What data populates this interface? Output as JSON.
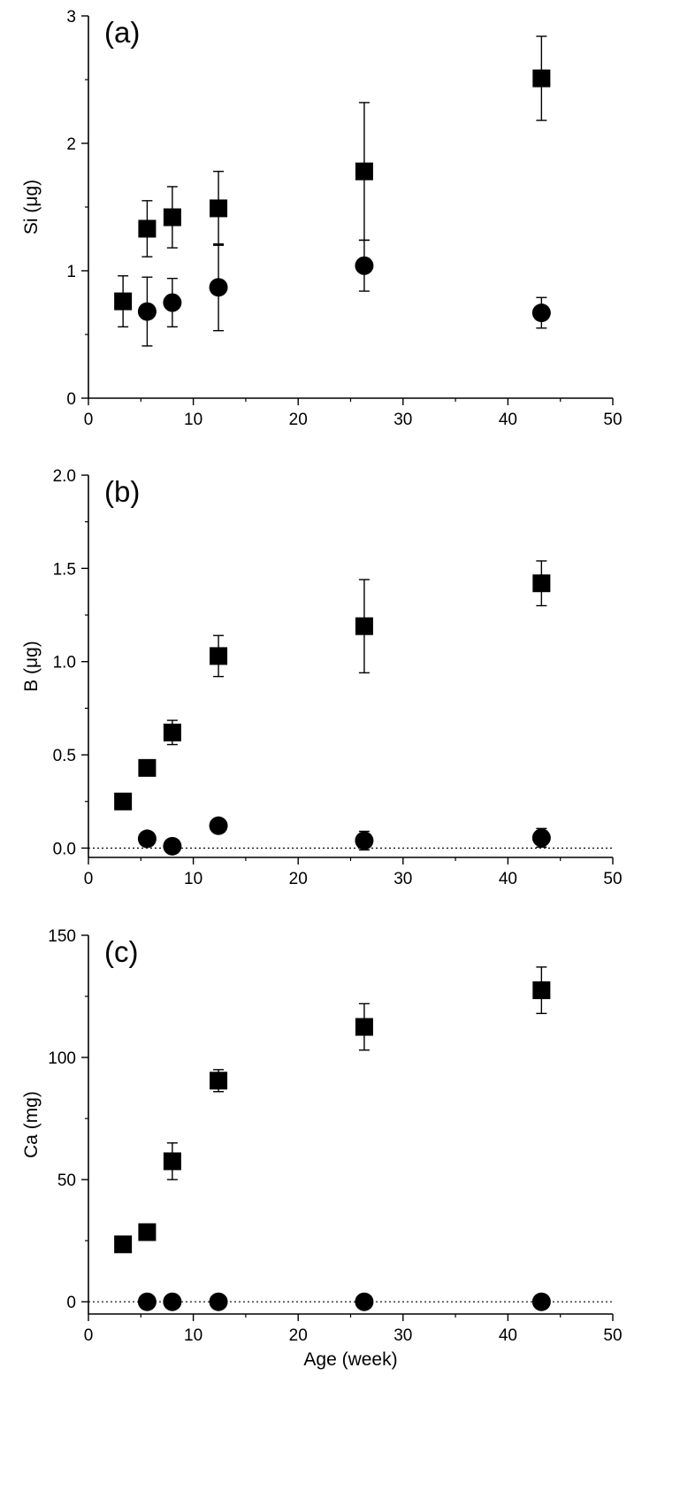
{
  "chart_data": [
    {
      "type": "scatter",
      "panel_label": "(a)",
      "xlabel": "",
      "ylabel": "Si (μg)",
      "xlim": [
        0,
        50
      ],
      "ylim": [
        0,
        3
      ],
      "x_ticks": [
        0,
        10,
        20,
        30,
        40,
        50
      ],
      "y_ticks": [
        0,
        1,
        2,
        3
      ],
      "x_tick_labels": [
        "0",
        "10",
        "20",
        "30",
        "40",
        "50"
      ],
      "y_tick_labels": [
        "0",
        "1",
        "2",
        "3"
      ],
      "zero_line": false,
      "series": [
        {
          "marker": "square",
          "points": [
            {
              "x": 3.3,
              "y": 0.76,
              "err": 0.2
            },
            {
              "x": 5.6,
              "y": 1.33,
              "err": 0.22
            },
            {
              "x": 8.0,
              "y": 1.42,
              "err": 0.24
            },
            {
              "x": 12.4,
              "y": 1.49,
              "err": 0.29
            },
            {
              "x": 26.3,
              "y": 1.78,
              "err": 0.54
            },
            {
              "x": 43.2,
              "y": 2.51,
              "err": 0.33
            }
          ]
        },
        {
          "marker": "circle",
          "points": [
            {
              "x": 5.6,
              "y": 0.68,
              "err": 0.27
            },
            {
              "x": 8.0,
              "y": 0.75,
              "err": 0.19
            },
            {
              "x": 12.4,
              "y": 0.87,
              "err": 0.34
            },
            {
              "x": 26.3,
              "y": 1.04,
              "err": 0.2
            },
            {
              "x": 43.2,
              "y": 0.67,
              "err": 0.12
            }
          ]
        }
      ]
    },
    {
      "type": "scatter",
      "panel_label": "(b)",
      "xlabel": "",
      "ylabel": "B (μg)",
      "xlim": [
        0,
        50
      ],
      "ylim": [
        -0.05,
        2.0
      ],
      "x_ticks": [
        0,
        10,
        20,
        30,
        40,
        50
      ],
      "y_ticks": [
        0,
        0.5,
        1,
        1.5,
        2
      ],
      "x_tick_labels": [
        "0",
        "10",
        "20",
        "30",
        "40",
        "50"
      ],
      "y_tick_labels": [
        "0.0",
        "0.5",
        "1.0",
        "1.5",
        "2.0"
      ],
      "zero_line": true,
      "series": [
        {
          "marker": "square",
          "points": [
            {
              "x": 3.3,
              "y": 0.25,
              "err": 0
            },
            {
              "x": 5.6,
              "y": 0.43,
              "err": 0
            },
            {
              "x": 8.0,
              "y": 0.62,
              "err": 0.065
            },
            {
              "x": 12.4,
              "y": 1.03,
              "err": 0.11
            },
            {
              "x": 26.3,
              "y": 1.19,
              "err": 0.25
            },
            {
              "x": 43.2,
              "y": 1.42,
              "err": 0.12
            }
          ]
        },
        {
          "marker": "circle",
          "points": [
            {
              "x": 5.6,
              "y": 0.05,
              "err": 0
            },
            {
              "x": 8.0,
              "y": 0.01,
              "err": 0
            },
            {
              "x": 12.4,
              "y": 0.12,
              "err": 0
            },
            {
              "x": 26.3,
              "y": 0.04,
              "err": 0.05
            },
            {
              "x": 43.2,
              "y": 0.055,
              "err": 0.05
            }
          ]
        }
      ]
    },
    {
      "type": "scatter",
      "panel_label": "(c)",
      "xlabel": "Age (week)",
      "ylabel": "Ca (mg)",
      "xlim": [
        0,
        50
      ],
      "ylim": [
        -5,
        150
      ],
      "x_ticks": [
        0,
        10,
        20,
        30,
        40,
        50
      ],
      "y_ticks": [
        0,
        50,
        100,
        150
      ],
      "x_tick_labels": [
        "0",
        "10",
        "20",
        "30",
        "40",
        "50"
      ],
      "y_tick_labels": [
        "0",
        "50",
        "100",
        "150"
      ],
      "zero_line": true,
      "series": [
        {
          "marker": "square",
          "points": [
            {
              "x": 3.3,
              "y": 23.5,
              "err": 0
            },
            {
              "x": 5.6,
              "y": 28.5,
              "err": 0
            },
            {
              "x": 8.0,
              "y": 57.5,
              "err": 7.5
            },
            {
              "x": 12.4,
              "y": 90.5,
              "err": 4.5
            },
            {
              "x": 26.3,
              "y": 112.5,
              "err": 9.5
            },
            {
              "x": 43.2,
              "y": 127.5,
              "err": 9.5
            }
          ]
        },
        {
          "marker": "circle",
          "points": [
            {
              "x": 5.6,
              "y": 0,
              "err": 0
            },
            {
              "x": 8.0,
              "y": 0,
              "err": 0
            },
            {
              "x": 12.4,
              "y": 0,
              "err": 0
            },
            {
              "x": 26.3,
              "y": 0,
              "err": 0
            },
            {
              "x": 43.2,
              "y": 0,
              "err": 0
            }
          ]
        }
      ]
    }
  ]
}
